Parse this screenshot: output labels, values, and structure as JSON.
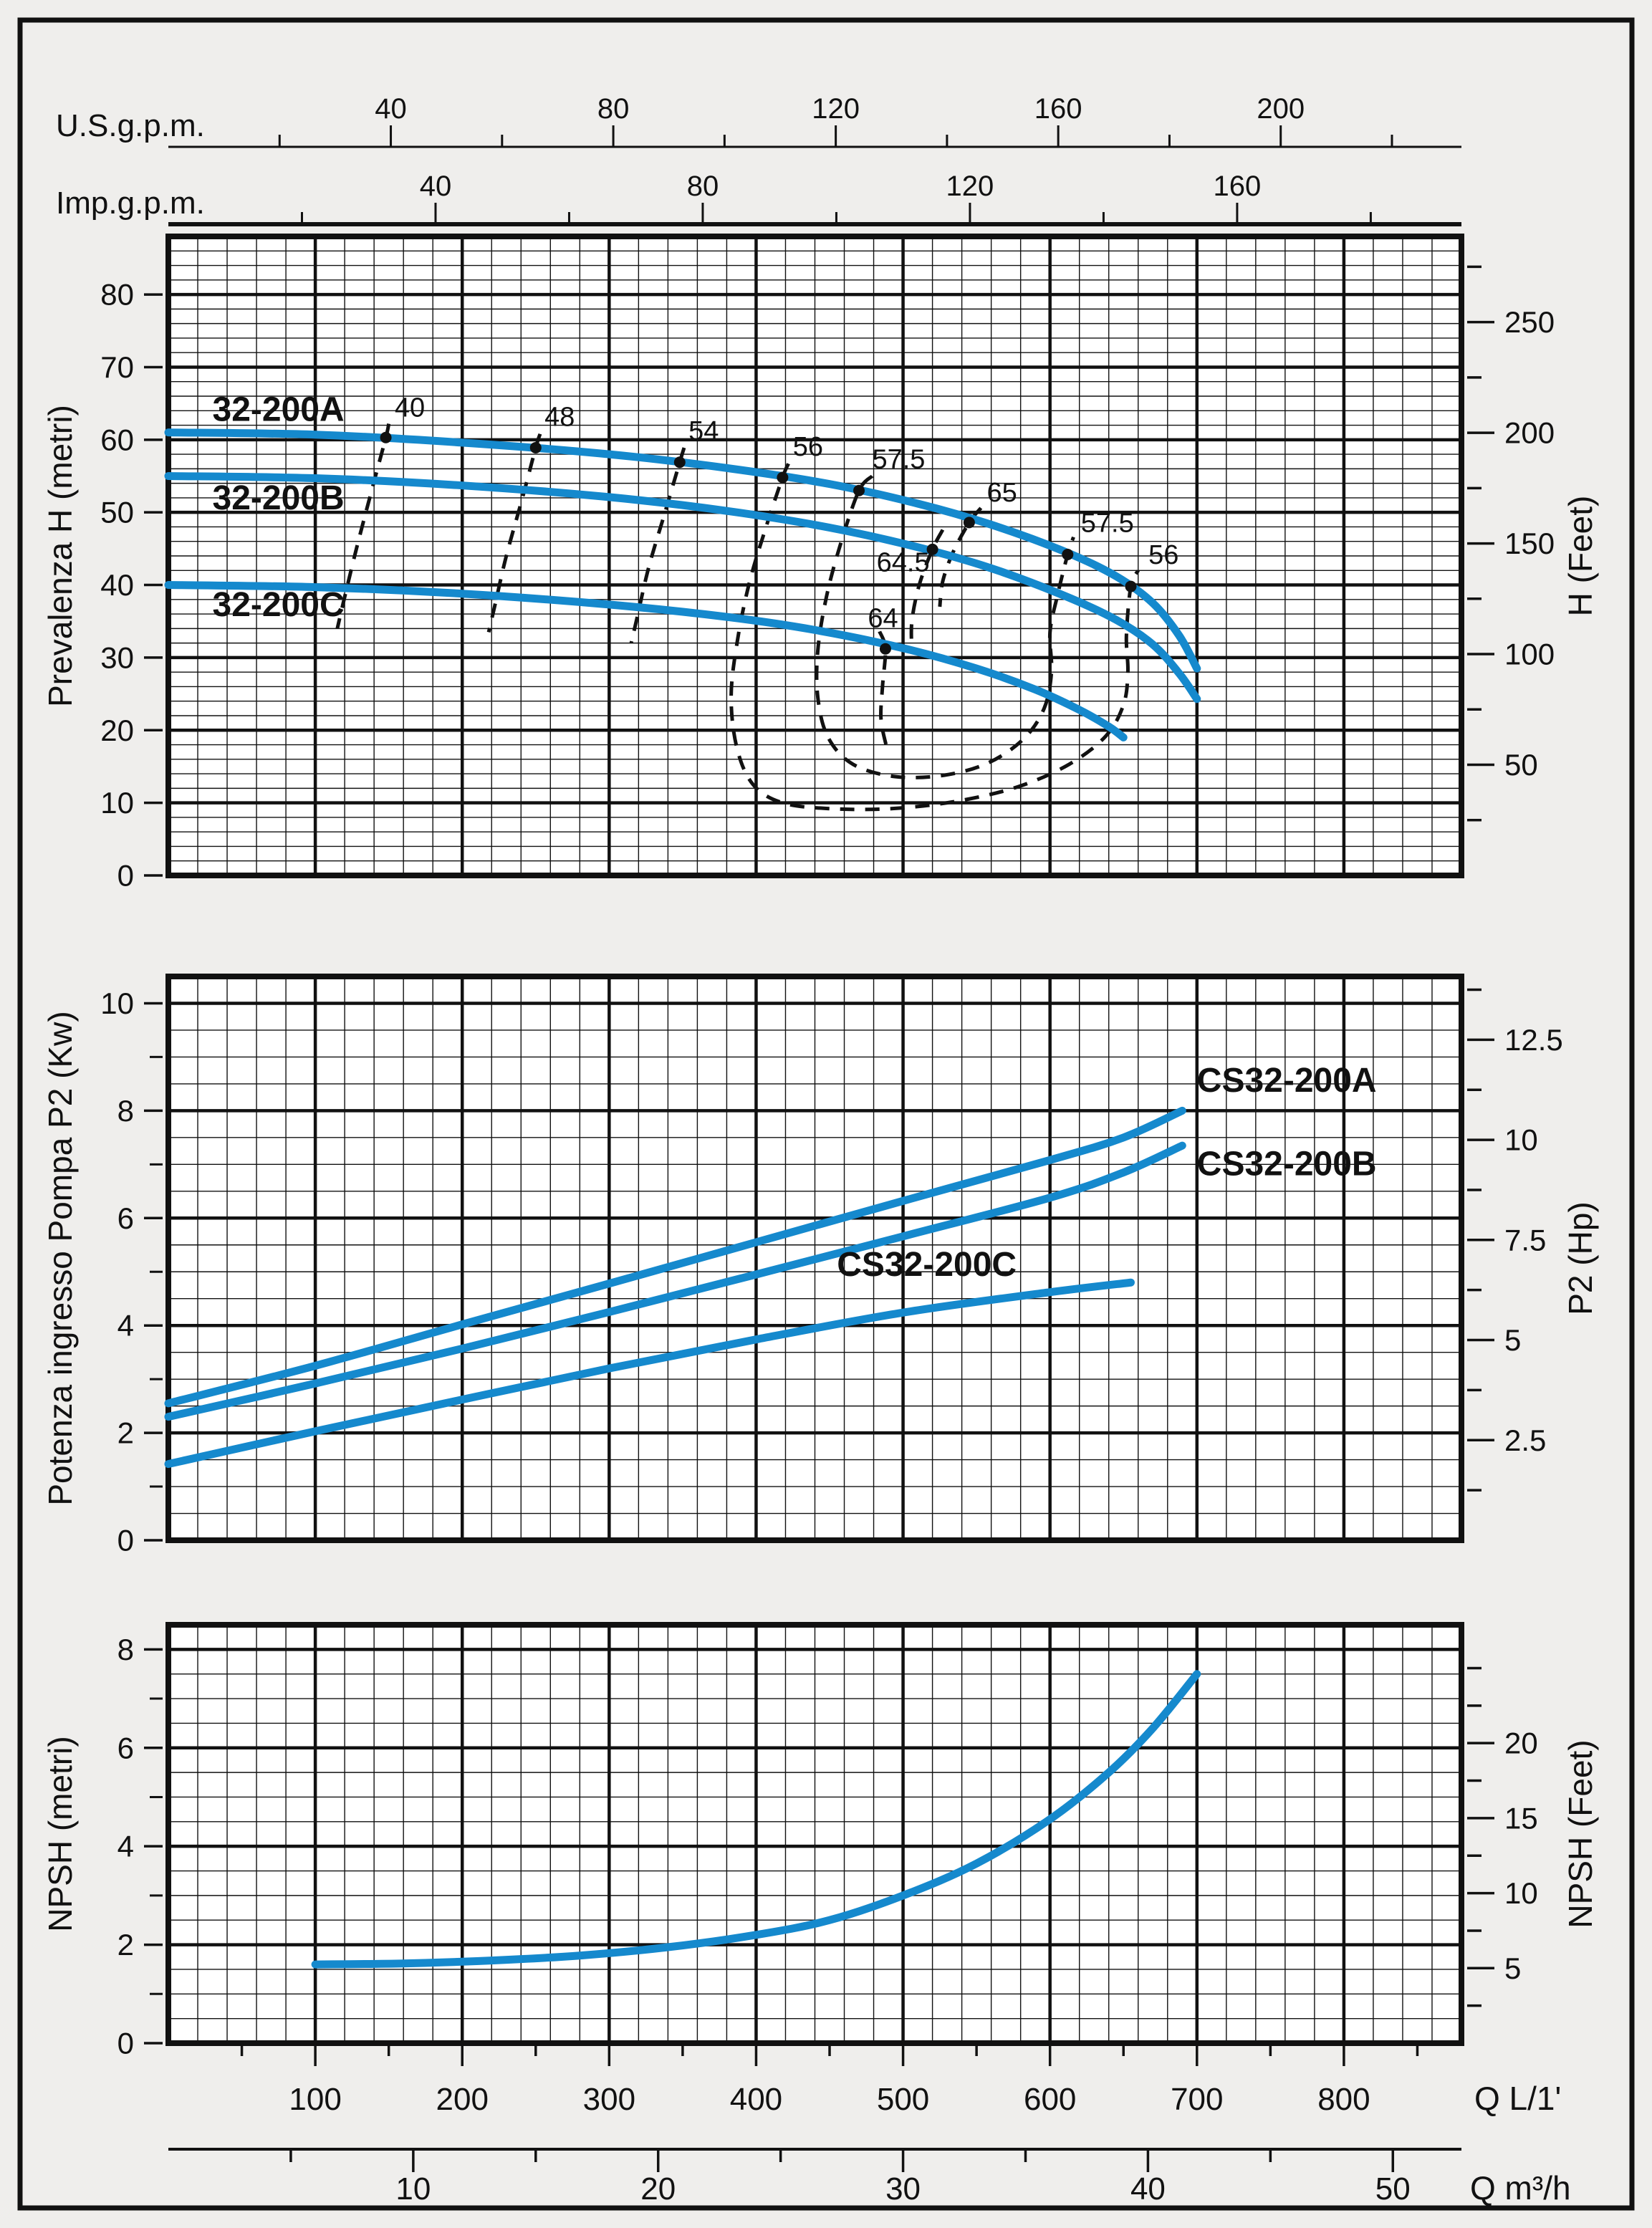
{
  "page": {
    "background": "#efeeec",
    "plot_background": "#ffffff",
    "ink": "#111111",
    "curve_color": "#1589cd"
  },
  "top_scales": [
    {
      "id": "usgpm",
      "title": "U.S.g.p.m.",
      "unit_to_l_per_min": 3.785,
      "major_ticks": [
        40,
        80,
        120,
        160,
        200
      ],
      "minor_step": 20,
      "max": 230
    },
    {
      "id": "impgpm",
      "title": "Imp.g.p.m.",
      "unit_to_l_per_min": 4.546,
      "major_ticks": [
        40,
        80,
        120,
        160
      ],
      "minor_step": 20,
      "max": 190
    }
  ],
  "bottom_scales": [
    {
      "id": "q_l1",
      "label": "Q L/1'",
      "major_ticks": [
        100,
        200,
        300,
        400,
        500,
        600,
        700,
        800
      ],
      "minor_step": 50,
      "max": 880
    },
    {
      "id": "q_m3h",
      "label": "Q m³/h",
      "unit_to_l_per_min": 16.6667,
      "major_ticks": [
        10,
        20,
        30,
        40,
        50
      ],
      "minor_step": 5,
      "max": 52.8
    }
  ],
  "chart_data": [
    {
      "type": "line",
      "id": "head",
      "title": "H-Q curves",
      "ylabel": "Prevalenza H (metri)",
      "ylabel_right": "H (Feet)",
      "xlabel": "Q L/1'",
      "ylim": [
        0,
        88
      ],
      "xlim": [
        0,
        880
      ],
      "y_major_step": 10,
      "y_minor_step": 2,
      "y_tick_labels": [
        0,
        10,
        20,
        30,
        40,
        50,
        60,
        70,
        80
      ],
      "right_axis": {
        "unit": "Feet",
        "m_per_unit": 0.3048,
        "major_ticks": [
          50,
          100,
          150,
          200,
          250
        ],
        "minor_step": 25,
        "max": 280
      },
      "series": [
        {
          "name": "32-200A",
          "points": [
            [
              0,
              61
            ],
            [
              100,
              60.7
            ],
            [
              200,
              59.6
            ],
            [
              300,
              58
            ],
            [
              380,
              56.1
            ],
            [
              450,
              53.9
            ],
            [
              510,
              51.2
            ],
            [
              560,
              48.3
            ],
            [
              610,
              44.6
            ],
            [
              645,
              41.2
            ],
            [
              670,
              37.5
            ],
            [
              688,
              33
            ],
            [
              700,
              28.5
            ]
          ],
          "label_pos": [
            30,
            62.6
          ]
        },
        {
          "name": "32-200B",
          "points": [
            [
              0,
              55
            ],
            [
              100,
              54.7
            ],
            [
              200,
              53.7
            ],
            [
              300,
              52.1
            ],
            [
              380,
              50.2
            ],
            [
              450,
              47.9
            ],
            [
              510,
              45.2
            ],
            [
              560,
              42.3
            ],
            [
              610,
              38.5
            ],
            [
              645,
              35.2
            ],
            [
              670,
              31.8
            ],
            [
              688,
              27.8
            ],
            [
              700,
              24.3
            ]
          ],
          "label_pos": [
            30,
            50.4
          ]
        },
        {
          "name": "32-200C",
          "points": [
            [
              0,
              40
            ],
            [
              100,
              39.7
            ],
            [
              200,
              38.8
            ],
            [
              300,
              37.3
            ],
            [
              380,
              35.6
            ],
            [
              440,
              33.8
            ],
            [
              500,
              31.3
            ],
            [
              550,
              28.5
            ],
            [
              590,
              25.6
            ],
            [
              620,
              22.8
            ],
            [
              640,
              20.5
            ],
            [
              650,
              19
            ]
          ],
          "label_pos": [
            30,
            35.7
          ]
        }
      ],
      "efficiency": {
        "points": [
          {
            "value": "40",
            "dot": [
              148,
              60.3
            ],
            "label": [
              154,
              63.2
            ]
          },
          {
            "value": "48",
            "dot": [
              250,
              58.9
            ],
            "label": [
              256,
              61.9
            ]
          },
          {
            "value": "54",
            "dot": [
              348,
              56.9
            ],
            "label": [
              354,
              60.0
            ]
          },
          {
            "value": "56",
            "dot": [
              418,
              54.8
            ],
            "label": [
              425,
              57.8
            ]
          },
          {
            "value": "57.5",
            "dot": [
              470,
              53.0
            ],
            "label": [
              479,
              56.1
            ]
          },
          {
            "value": "65",
            "dot": [
              545,
              48.6
            ],
            "label": [
              557,
              51.5
            ]
          },
          {
            "value": "64.5",
            "dot": [
              520,
              44.9
            ],
            "label": [
              482,
              41.9
            ]
          },
          {
            "value": "57.5",
            "dot": [
              612,
              44.2
            ],
            "label": [
              621,
              47.3
            ]
          },
          {
            "value": "56",
            "dot": [
              655,
              39.8
            ],
            "label": [
              667,
              42.9
            ]
          },
          {
            "value": "64",
            "dot": [
              488,
              31.2
            ],
            "label": [
              476,
              34.2
            ]
          }
        ],
        "contours": [
          {
            "value": "40",
            "points": [
              [
                150,
                62.2
              ],
              [
                148,
                60.3
              ],
              [
                139,
                53.5
              ],
              [
                128,
                45
              ],
              [
                119,
                37.5
              ],
              [
                115,
                34
              ]
            ]
          },
          {
            "value": "48",
            "points": [
              [
                253,
                60.8
              ],
              [
                250,
                58.9
              ],
              [
                241,
                52
              ],
              [
                230,
                44
              ],
              [
                222,
                37
              ],
              [
                218,
                33.5
              ]
            ]
          },
          {
            "value": "54",
            "points": [
              [
                351,
                58.9
              ],
              [
                348,
                56.9
              ],
              [
                338,
                50
              ],
              [
                327,
                42.5
              ],
              [
                319,
                35.5
              ],
              [
                315,
                32
              ]
            ]
          },
          {
            "value": "56",
            "points": [
              [
                422,
                56.7
              ],
              [
                418,
                54.8
              ],
              [
                406,
                47.5
              ],
              [
                395,
                40
              ],
              [
                387,
                32
              ],
              [
                383,
                24.5
              ],
              [
                387,
                17.5
              ],
              [
                398,
                12.5
              ],
              [
                418,
                10
              ],
              [
                450,
                9.2
              ],
              [
                492,
                9.2
              ],
              [
                536,
                10.2
              ],
              [
                578,
                12.2
              ],
              [
                613,
                15.3
              ],
              [
                638,
                19.2
              ],
              [
                650,
                23.5
              ],
              [
                653,
                28
              ],
              [
                652,
                33
              ],
              [
                655,
                39.8
              ],
              [
                660,
                42
              ]
            ]
          },
          {
            "value": "57.5",
            "points": [
              [
                479,
                55
              ],
              [
                470,
                53
              ],
              [
                458,
                46
              ],
              [
                448,
                38.5
              ],
              [
                442,
                31
              ],
              [
                442,
                24.5
              ],
              [
                449,
                19
              ],
              [
                466,
                15.3
              ],
              [
                495,
                13.6
              ],
              [
                528,
                13.8
              ],
              [
                558,
                15.5
              ],
              [
                582,
                18.8
              ],
              [
                596,
                23
              ],
              [
                601,
                28
              ],
              [
                600,
                33.5
              ],
              [
                605,
                38.5
              ],
              [
                612,
                44.2
              ],
              [
                616,
                46.6
              ]
            ]
          },
          {
            "value": "65",
            "points": [
              [
                553,
                50.6
              ],
              [
                545,
                48.6
              ],
              [
                534,
                44.5
              ],
              [
                527,
                40.5
              ],
              [
                525,
                37
              ]
            ]
          },
          {
            "value": "64.5",
            "points": [
              [
                527,
                47.6
              ],
              [
                520,
                44.9
              ],
              [
                511,
                40
              ],
              [
                506,
                35
              ],
              [
                506,
                31
              ]
            ]
          },
          {
            "value": "64",
            "points": [
              [
                484,
                33.6
              ],
              [
                488,
                31.2
              ],
              [
                486,
                26
              ],
              [
                485,
                21.5
              ],
              [
                489,
                17.5
              ]
            ]
          }
        ]
      }
    },
    {
      "type": "line",
      "id": "power",
      "title": "P2-Q curves",
      "ylabel": "Potenza ingresso Pompa P2 (Kw)",
      "ylabel_right": "P2 (Hp)",
      "xlabel": "Q L/1'",
      "ylim": [
        0,
        10.5
      ],
      "xlim": [
        0,
        880
      ],
      "y_major_step": 2,
      "y_minor_step": 0.5,
      "y_tick_labels": [
        0,
        2,
        4,
        6,
        8,
        10
      ],
      "right_axis": {
        "unit": "Hp",
        "m_per_unit": 0.7457,
        "major_ticks": [
          2.5,
          5,
          7.5,
          10,
          12.5
        ],
        "minor_step": 1.25,
        "max": 14
      },
      "series": [
        {
          "name": "CS32-200A",
          "points": [
            [
              0,
              2.55
            ],
            [
              100,
              3.25
            ],
            [
              200,
              4.02
            ],
            [
              300,
              4.78
            ],
            [
              400,
              5.55
            ],
            [
              500,
              6.32
            ],
            [
              600,
              7.08
            ],
            [
              650,
              7.5
            ],
            [
              690,
              8.0
            ]
          ],
          "label_pos": [
            700,
            8.35
          ]
        },
        {
          "name": "CS32-200B",
          "points": [
            [
              0,
              2.3
            ],
            [
              100,
              2.92
            ],
            [
              200,
              3.57
            ],
            [
              300,
              4.25
            ],
            [
              400,
              4.95
            ],
            [
              500,
              5.66
            ],
            [
              600,
              6.38
            ],
            [
              650,
              6.85
            ],
            [
              690,
              7.35
            ]
          ],
          "label_pos": [
            700,
            6.8
          ]
        },
        {
          "name": "CS32-200C",
          "points": [
            [
              0,
              1.42
            ],
            [
              100,
              2.03
            ],
            [
              200,
              2.62
            ],
            [
              300,
              3.2
            ],
            [
              400,
              3.74
            ],
            [
              500,
              4.24
            ],
            [
              600,
              4.62
            ],
            [
              655,
              4.8
            ]
          ],
          "label_pos": [
            455,
            4.92
          ]
        }
      ]
    },
    {
      "type": "line",
      "id": "npsh",
      "title": "NPSH curve",
      "ylabel": "NPSH (metri)",
      "ylabel_right": "NPSH (Feet)",
      "xlabel": "Q L/1'",
      "ylim": [
        0,
        8.5
      ],
      "xlim": [
        0,
        880
      ],
      "y_major_step": 2,
      "y_minor_step": 0.5,
      "y_tick_labels": [
        0,
        2,
        4,
        6,
        8
      ],
      "right_axis": {
        "unit": "Feet",
        "m_per_unit": 0.3048,
        "major_ticks": [
          5,
          10,
          15,
          20
        ],
        "minor_step": 2.5,
        "max": 26
      },
      "series": [
        {
          "name": "NPSH",
          "points": [
            [
              100,
              1.6
            ],
            [
              160,
              1.62
            ],
            [
              220,
              1.68
            ],
            [
              280,
              1.78
            ],
            [
              340,
              1.95
            ],
            [
              400,
              2.2
            ],
            [
              450,
              2.5
            ],
            [
              500,
              3.0
            ],
            [
              550,
              3.65
            ],
            [
              600,
              4.55
            ],
            [
              640,
              5.5
            ],
            [
              670,
              6.4
            ],
            [
              700,
              7.5
            ]
          ]
        }
      ]
    }
  ]
}
